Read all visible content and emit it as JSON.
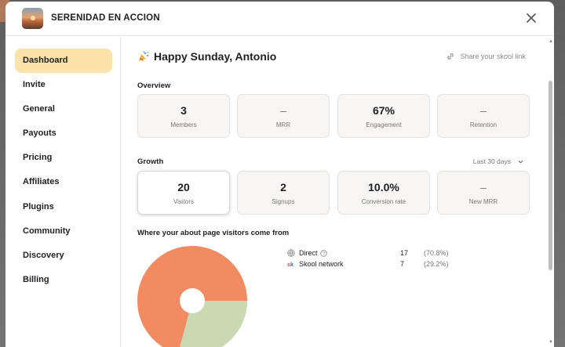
{
  "header": {
    "group_name": "SERENIDAD EN ACCION"
  },
  "sidebar": {
    "items": [
      {
        "label": "Dashboard",
        "active": true
      },
      {
        "label": "Invite"
      },
      {
        "label": "General"
      },
      {
        "label": "Payouts"
      },
      {
        "label": "Pricing"
      },
      {
        "label": "Affiliates"
      },
      {
        "label": "Plugins"
      },
      {
        "label": "Community"
      },
      {
        "label": "Discovery"
      },
      {
        "label": "Billing"
      }
    ]
  },
  "main": {
    "greeting": "Happy Sunday, Antonio",
    "share_link": "Share your skool link",
    "overview": {
      "label": "Overview",
      "cards": [
        {
          "value": "3",
          "label": "Members"
        },
        {
          "value": "–",
          "label": "MRR"
        },
        {
          "value": "67%",
          "label": "Engagement"
        },
        {
          "value": "–",
          "label": "Retention"
        }
      ]
    },
    "growth": {
      "label": "Growth",
      "range": "Last 30 days",
      "cards": [
        {
          "value": "20",
          "label": "Visitors",
          "selected": true
        },
        {
          "value": "2",
          "label": "Signups"
        },
        {
          "value": "10.0%",
          "label": "Conversion rate"
        },
        {
          "value": "–",
          "label": "New MRR"
        }
      ]
    },
    "sources_label": "Where your about page visitors come from"
  },
  "chart_data": {
    "type": "pie",
    "title": "Where your about page visitors come from",
    "slices": [
      {
        "name": "Direct",
        "value": 17,
        "percent": "(70.8%)",
        "color": "#f28b61",
        "icon": "globe-icon"
      },
      {
        "name": "Skool network",
        "value": 7,
        "percent": "(29.2%)",
        "color": "#c9d9b2",
        "icon": "skool-logo-icon"
      }
    ]
  }
}
